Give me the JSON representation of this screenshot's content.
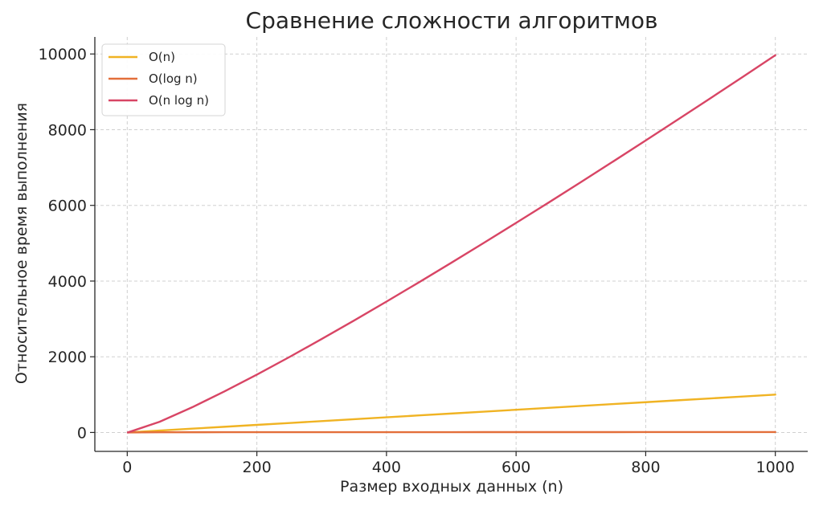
{
  "chart_data": {
    "type": "line",
    "title": "Сравнение сложности алгоритмов",
    "xlabel": "Размер входных данных (n)",
    "ylabel": "Относительное время выполнения",
    "xlim": [
      -50,
      1050
    ],
    "ylim": [
      -500,
      10450
    ],
    "xticks": [
      0,
      200,
      400,
      600,
      800,
      1000
    ],
    "yticks": [
      0,
      2000,
      4000,
      6000,
      8000,
      10000
    ],
    "grid": true,
    "grid_style": "dashed",
    "legend_position": "top-left",
    "series": [
      {
        "name": "O(n)",
        "color": "#f0b323",
        "x": [
          1,
          50,
          100,
          150,
          200,
          250,
          300,
          350,
          400,
          450,
          500,
          550,
          600,
          650,
          700,
          750,
          800,
          850,
          900,
          950,
          1000
        ],
        "y": [
          1,
          50,
          100,
          150,
          200,
          250,
          300,
          350,
          400,
          450,
          500,
          550,
          600,
          650,
          700,
          750,
          800,
          850,
          900,
          950,
          1000
        ]
      },
      {
        "name": "O(log n)",
        "color": "#e36f3a",
        "x": [
          1,
          50,
          100,
          150,
          200,
          250,
          300,
          350,
          400,
          450,
          500,
          550,
          600,
          650,
          700,
          750,
          800,
          850,
          900,
          950,
          1000
        ],
        "y": [
          0,
          5.64,
          6.64,
          7.23,
          7.64,
          7.97,
          8.23,
          8.45,
          8.64,
          8.81,
          8.97,
          9.1,
          9.23,
          9.34,
          9.45,
          9.55,
          9.64,
          9.73,
          9.81,
          9.89,
          9.97
        ]
      },
      {
        "name": "O(n log n)",
        "color": "#d84565",
        "x": [
          1,
          50,
          100,
          150,
          200,
          250,
          300,
          350,
          400,
          450,
          500,
          550,
          600,
          650,
          700,
          750,
          800,
          850,
          900,
          950,
          1000
        ],
        "y": [
          0,
          282,
          664,
          1084,
          1529,
          1991,
          2469,
          2958,
          3458,
          3966,
          4483,
          5007,
          5537,
          6072,
          6615,
          7162,
          7715,
          8271,
          8832,
          9397,
          9966
        ]
      }
    ]
  }
}
